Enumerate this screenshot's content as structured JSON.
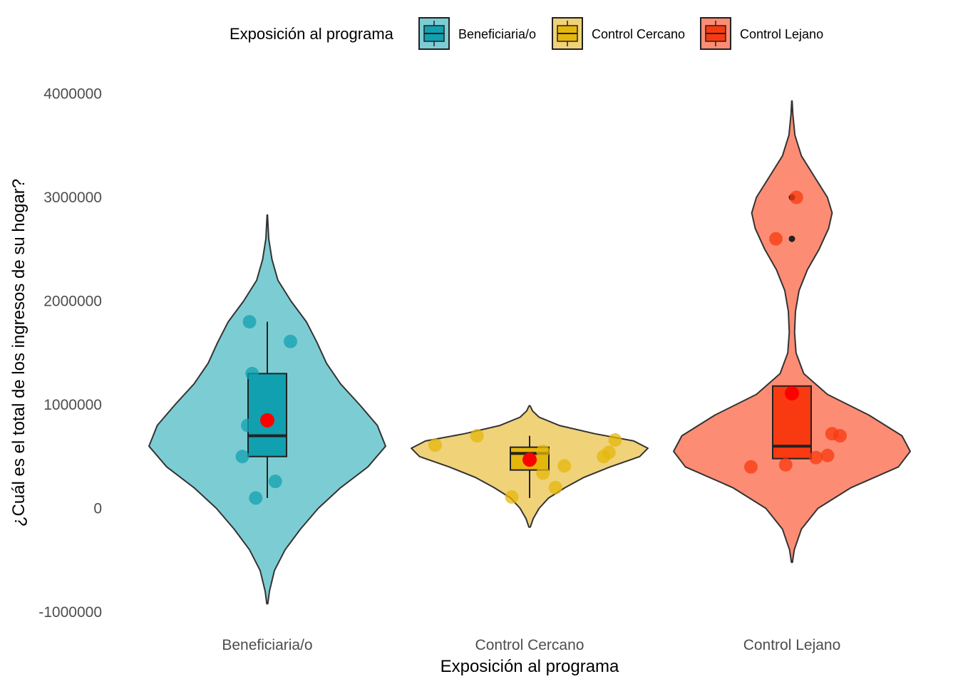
{
  "chart_data": {
    "type": "violin",
    "xlabel": "Exposición al programa",
    "ylabel": "¿Cuál es el total de los ingresos de su hogar?",
    "ylim": [
      -1000000,
      4000000
    ],
    "yticks": [
      -1000000,
      0,
      1000000,
      2000000,
      3000000,
      4000000
    ],
    "ytick_labels": [
      "-1000000",
      "0",
      "1000000",
      "2000000",
      "3000000",
      "4000000"
    ],
    "legend": {
      "title": "Exposición al programa",
      "position": "top",
      "entries": [
        "Beneficiaria/o",
        "Control Cercano",
        "Control Lejano"
      ]
    },
    "grid": false,
    "mean_marker_color": "#ff0000",
    "categories": [
      "Beneficiaria/o",
      "Control Cercano",
      "Control Lejano"
    ],
    "groups": [
      {
        "name": "Beneficiaria/o",
        "fill": "#11a0b0",
        "violin_fill": "#7ccdd3",
        "violin": [
          [
            -920000,
            0.004
          ],
          [
            -800000,
            0.018
          ],
          [
            -600000,
            0.06
          ],
          [
            -400000,
            0.15
          ],
          [
            -200000,
            0.28
          ],
          [
            0,
            0.43
          ],
          [
            200000,
            0.62
          ],
          [
            400000,
            0.85
          ],
          [
            600000,
            1.0
          ],
          [
            800000,
            0.93
          ],
          [
            1000000,
            0.78
          ],
          [
            1200000,
            0.62
          ],
          [
            1400000,
            0.5
          ],
          [
            1600000,
            0.42
          ],
          [
            1800000,
            0.33
          ],
          [
            2000000,
            0.2
          ],
          [
            2200000,
            0.09
          ],
          [
            2400000,
            0.04
          ],
          [
            2600000,
            0.012
          ],
          [
            2830000,
            0.002
          ]
        ],
        "box": {
          "whisker_low": 100000,
          "q1": 500000,
          "median": 700000,
          "q3": 1300000,
          "whisker_high": 1800000
        },
        "mean": 850000,
        "outliers": [],
        "points": [
          [
            -0.28,
            500000
          ],
          [
            -0.13,
            100000
          ],
          [
            0.09,
            260000
          ],
          [
            -0.22,
            800000
          ],
          [
            -0.2,
            1800000
          ],
          [
            -0.17,
            1300000
          ],
          [
            0.26,
            1610000
          ]
        ]
      },
      {
        "name": "Control Cercano",
        "fill": "#e5b70c",
        "violin_fill": "#f0d279",
        "violin": [
          [
            -180000,
            0.006
          ],
          [
            -100000,
            0.03
          ],
          [
            0,
            0.08
          ],
          [
            100000,
            0.16
          ],
          [
            200000,
            0.3
          ],
          [
            300000,
            0.46
          ],
          [
            400000,
            0.68
          ],
          [
            500000,
            0.93
          ],
          [
            580000,
            1.0
          ],
          [
            650000,
            0.88
          ],
          [
            720000,
            0.55
          ],
          [
            800000,
            0.25
          ],
          [
            880000,
            0.08
          ],
          [
            940000,
            0.025
          ],
          [
            990000,
            0.004
          ]
        ],
        "box": {
          "whisker_low": 100000,
          "q1": 370000,
          "median": 530000,
          "q3": 590000,
          "whisker_high": 700000
        },
        "mean": 470000,
        "outliers": [],
        "points": [
          [
            -1.06,
            610000
          ],
          [
            -0.59,
            700000
          ],
          [
            -0.2,
            110000
          ],
          [
            0.29,
            200000
          ],
          [
            0.15,
            550000
          ],
          [
            0.39,
            410000
          ],
          [
            0.15,
            340000
          ],
          [
            0.89,
            540000
          ],
          [
            0.96,
            660000
          ],
          [
            0.83,
            500000
          ]
        ]
      },
      {
        "name": "Control Lejano",
        "fill": "#f93a10",
        "violin_fill": "#fc8d74",
        "violin": [
          [
            -520000,
            0.004
          ],
          [
            -400000,
            0.02
          ],
          [
            -200000,
            0.08
          ],
          [
            0,
            0.22
          ],
          [
            200000,
            0.5
          ],
          [
            400000,
            0.9
          ],
          [
            550000,
            1.0
          ],
          [
            700000,
            0.93
          ],
          [
            900000,
            0.65
          ],
          [
            1100000,
            0.3
          ],
          [
            1300000,
            0.1
          ],
          [
            1500000,
            0.035
          ],
          [
            1700000,
            0.022
          ],
          [
            1900000,
            0.03
          ],
          [
            2100000,
            0.06
          ],
          [
            2300000,
            0.13
          ],
          [
            2500000,
            0.23
          ],
          [
            2700000,
            0.31
          ],
          [
            2850000,
            0.34
          ],
          [
            3000000,
            0.3
          ],
          [
            3200000,
            0.19
          ],
          [
            3400000,
            0.08
          ],
          [
            3600000,
            0.025
          ],
          [
            3800000,
            0.008
          ],
          [
            3930000,
            0.002
          ]
        ],
        "box": {
          "whisker_low": 480000,
          "q1": 480000,
          "median": 600000,
          "q3": 1180000,
          "whisker_high": 1180000
        },
        "mean": 1110000,
        "outliers": [
          2600000,
          3000000
        ],
        "points": [
          [
            -0.46,
            400000
          ],
          [
            -0.07,
            420000
          ],
          [
            0.27,
            490000
          ],
          [
            0.4,
            510000
          ],
          [
            0.45,
            720000
          ],
          [
            0.54,
            700000
          ],
          [
            -0.18,
            2600000
          ],
          [
            0.05,
            3000000
          ]
        ]
      }
    ]
  }
}
